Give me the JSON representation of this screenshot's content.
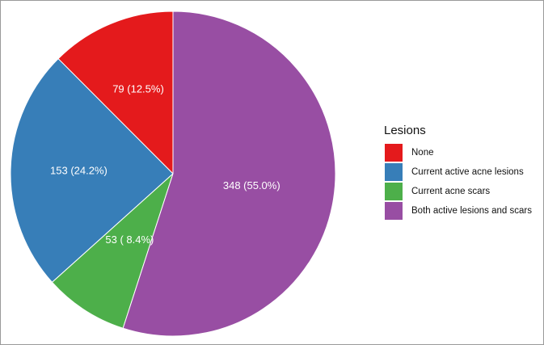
{
  "chart_data": {
    "type": "pie",
    "legend_title": "Lesions",
    "legend_position": "right",
    "start_angle": "top",
    "direction": "counter-clockwise",
    "slices": [
      {
        "name": "None",
        "value": 79,
        "percent": 12.5,
        "label": "79 (12.5%)",
        "color": "#e41a1c"
      },
      {
        "name": "Current active acne lesions",
        "value": 153,
        "percent": 24.2,
        "label": "153 (24.2%)",
        "color": "#377eb8"
      },
      {
        "name": "Current acne scars",
        "value": 53,
        "percent": 8.4,
        "label": "53 ( 8.4%)",
        "color": "#4daf4a"
      },
      {
        "name": "Both active lesions and scars",
        "value": 348,
        "percent": 55.0,
        "label": "348 (55.0%)",
        "color": "#984ea3"
      }
    ]
  }
}
